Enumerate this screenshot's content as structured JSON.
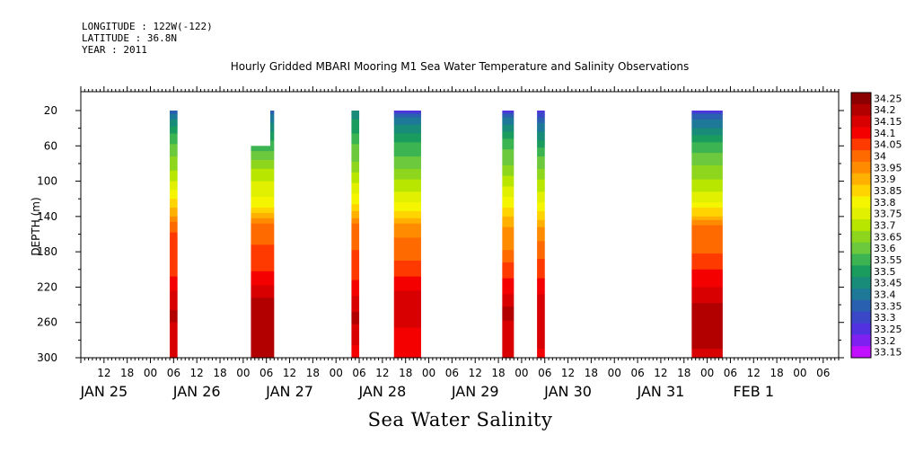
{
  "header": {
    "longitude": "LONGITUDE : 122W(-122)",
    "latitude": "LATITUDE : 36.8N",
    "year": "YEAR : 2011"
  },
  "chart_data": {
    "type": "heatmap",
    "title": "Hourly Gridded MBARI Mooring M1 Sea Water Temperature and Salinity Observations",
    "subtitle": "Sea Water Salinity",
    "ylabel": "DEPTH (m)",
    "xlabel": "",
    "x_axis": {
      "unit": "hours since JAN 25 00:00",
      "range": [
        6,
        202
      ],
      "hour_ticks": [
        {
          "h": 12,
          "label": "12"
        },
        {
          "h": 18,
          "label": "18"
        },
        {
          "h": 24,
          "label": "00"
        },
        {
          "h": 30,
          "label": "06"
        },
        {
          "h": 36,
          "label": "12"
        },
        {
          "h": 42,
          "label": "18"
        },
        {
          "h": 48,
          "label": "00"
        },
        {
          "h": 54,
          "label": "06"
        },
        {
          "h": 60,
          "label": "12"
        },
        {
          "h": 66,
          "label": "18"
        },
        {
          "h": 72,
          "label": "00"
        },
        {
          "h": 78,
          "label": "06"
        },
        {
          "h": 84,
          "label": "12"
        },
        {
          "h": 90,
          "label": "18"
        },
        {
          "h": 96,
          "label": "00"
        },
        {
          "h": 102,
          "label": "06"
        },
        {
          "h": 108,
          "label": "12"
        },
        {
          "h": 114,
          "label": "18"
        },
        {
          "h": 120,
          "label": "00"
        },
        {
          "h": 126,
          "label": "06"
        },
        {
          "h": 132,
          "label": "12"
        },
        {
          "h": 138,
          "label": "18"
        },
        {
          "h": 144,
          "label": "00"
        },
        {
          "h": 150,
          "label": "06"
        },
        {
          "h": 156,
          "label": "12"
        },
        {
          "h": 162,
          "label": "18"
        },
        {
          "h": 168,
          "label": "00"
        },
        {
          "h": 174,
          "label": "06"
        },
        {
          "h": 180,
          "label": "12"
        },
        {
          "h": 186,
          "label": "18"
        },
        {
          "h": 192,
          "label": "00"
        },
        {
          "h": 198,
          "label": "06"
        }
      ],
      "day_labels": [
        {
          "h": 12,
          "label": "JAN 25"
        },
        {
          "h": 36,
          "label": "JAN 26"
        },
        {
          "h": 60,
          "label": "JAN 27"
        },
        {
          "h": 84,
          "label": "JAN 28"
        },
        {
          "h": 108,
          "label": "JAN 29"
        },
        {
          "h": 132,
          "label": "JAN 30"
        },
        {
          "h": 156,
          "label": "JAN 31"
        },
        {
          "h": 180,
          "label": "FEB  1"
        }
      ]
    },
    "y_axis": {
      "unit": "m",
      "range": [
        300,
        20
      ],
      "ticks": [
        20,
        60,
        100,
        140,
        180,
        220,
        260,
        300
      ]
    },
    "colorbar": {
      "levels": [
        "34.25",
        "34.2",
        "34.15",
        "34.1",
        "34.05",
        "34",
        "33.95",
        "33.9",
        "33.85",
        "33.8",
        "33.75",
        "33.7",
        "33.65",
        "33.6",
        "33.55",
        "33.5",
        "33.45",
        "33.4",
        "33.35",
        "33.3",
        "33.25",
        "33.2",
        "33.15"
      ],
      "colors": [
        "#8b0000",
        "#b20000",
        "#d80000",
        "#f50000",
        "#ff3a00",
        "#ff6a00",
        "#ff8c00",
        "#ffb000",
        "#ffd400",
        "#f5f500",
        "#e0f000",
        "#b8e600",
        "#8ed61e",
        "#6cc83c",
        "#3cb452",
        "#1a9c5e",
        "#188c78",
        "#1e7898",
        "#2a60b0",
        "#3a48c8",
        "#5232e0",
        "#8020f0",
        "#c010ff"
      ]
    },
    "series": [
      {
        "x": [
          29,
          31
        ],
        "profile": [
          [
            20,
            33.35
          ],
          [
            30,
            33.42
          ],
          [
            45,
            33.52
          ],
          [
            60,
            33.58
          ],
          [
            80,
            33.65
          ],
          [
            100,
            33.72
          ],
          [
            120,
            33.82
          ],
          [
            140,
            33.92
          ],
          [
            150,
            34.02
          ],
          [
            200,
            34.05
          ],
          [
            215,
            34.1
          ],
          [
            235,
            34.15
          ],
          [
            255,
            34.2
          ],
          [
            265,
            34.15
          ],
          [
            300,
            34.15
          ]
        ]
      },
      {
        "x": [
          50,
          55
        ],
        "data_top": 60,
        "profile": [
          [
            60,
            33.55
          ],
          [
            75,
            33.62
          ],
          [
            90,
            33.7
          ],
          [
            110,
            33.75
          ],
          [
            130,
            33.82
          ],
          [
            140,
            33.9
          ],
          [
            150,
            34.0
          ],
          [
            195,
            34.05
          ],
          [
            210,
            34.1
          ],
          [
            225,
            34.15
          ],
          [
            240,
            34.2
          ],
          [
            300,
            34.2
          ]
        ]
      },
      {
        "x": [
          55,
          56
        ],
        "profile": [
          [
            20,
            33.35
          ],
          [
            40,
            33.45
          ],
          [
            60,
            33.55
          ],
          [
            75,
            33.62
          ],
          [
            90,
            33.7
          ],
          [
            110,
            33.75
          ],
          [
            130,
            33.82
          ],
          [
            140,
            33.9
          ],
          [
            150,
            34.0
          ],
          [
            195,
            34.05
          ],
          [
            210,
            34.1
          ],
          [
            225,
            34.15
          ],
          [
            240,
            34.2
          ],
          [
            300,
            34.2
          ]
        ]
      },
      {
        "x": [
          76,
          78
        ],
        "profile": [
          [
            20,
            33.45
          ],
          [
            40,
            33.5
          ],
          [
            60,
            33.58
          ],
          [
            80,
            33.63
          ],
          [
            100,
            33.72
          ],
          [
            120,
            33.8
          ],
          [
            140,
            33.9
          ],
          [
            150,
            34.0
          ],
          [
            205,
            34.05
          ],
          [
            220,
            34.1
          ],
          [
            240,
            34.15
          ],
          [
            255,
            34.2
          ],
          [
            270,
            34.15
          ],
          [
            300,
            34.1
          ]
        ]
      },
      {
        "x": [
          87,
          94
        ],
        "profile": [
          [
            20,
            33.2
          ],
          [
            25,
            33.35
          ],
          [
            40,
            33.45
          ],
          [
            55,
            33.52
          ],
          [
            80,
            33.6
          ],
          [
            100,
            33.68
          ],
          [
            120,
            33.75
          ],
          [
            130,
            33.8
          ],
          [
            140,
            33.85
          ],
          [
            150,
            33.95
          ],
          [
            180,
            34.0
          ],
          [
            200,
            34.05
          ],
          [
            215,
            34.1
          ],
          [
            235,
            34.15
          ],
          [
            255,
            34.15
          ],
          [
            275,
            34.1
          ],
          [
            300,
            34.1
          ]
        ]
      },
      {
        "x": [
          115,
          118
        ],
        "profile": [
          [
            20,
            33.2
          ],
          [
            25,
            33.35
          ],
          [
            40,
            33.45
          ],
          [
            55,
            33.55
          ],
          [
            80,
            33.62
          ],
          [
            100,
            33.7
          ],
          [
            120,
            33.78
          ],
          [
            135,
            33.85
          ],
          [
            150,
            33.92
          ],
          [
            180,
            33.98
          ],
          [
            200,
            34.05
          ],
          [
            220,
            34.1
          ],
          [
            235,
            34.15
          ],
          [
            250,
            34.2
          ],
          [
            265,
            34.15
          ],
          [
            300,
            34.15
          ]
        ]
      },
      {
        "x": [
          124,
          126
        ],
        "profile": [
          [
            20,
            33.25
          ],
          [
            30,
            33.35
          ],
          [
            50,
            33.45
          ],
          [
            65,
            33.55
          ],
          [
            85,
            33.62
          ],
          [
            105,
            33.7
          ],
          [
            125,
            33.78
          ],
          [
            140,
            33.85
          ],
          [
            150,
            33.92
          ],
          [
            175,
            34.0
          ],
          [
            200,
            34.05
          ],
          [
            220,
            34.1
          ],
          [
            235,
            34.15
          ],
          [
            280,
            34.15
          ],
          [
            300,
            34.1
          ]
        ]
      },
      {
        "x": [
          164,
          172
        ],
        "profile": [
          [
            20,
            33.2
          ],
          [
            25,
            33.35
          ],
          [
            45,
            33.45
          ],
          [
            60,
            33.55
          ],
          [
            80,
            33.62
          ],
          [
            100,
            33.68
          ],
          [
            120,
            33.75
          ],
          [
            130,
            33.82
          ],
          [
            140,
            33.88
          ],
          [
            150,
            33.98
          ],
          [
            180,
            34.02
          ],
          [
            210,
            34.1
          ],
          [
            230,
            34.15
          ],
          [
            245,
            34.2
          ],
          [
            280,
            34.2
          ],
          [
            300,
            34.15
          ]
        ]
      }
    ]
  }
}
